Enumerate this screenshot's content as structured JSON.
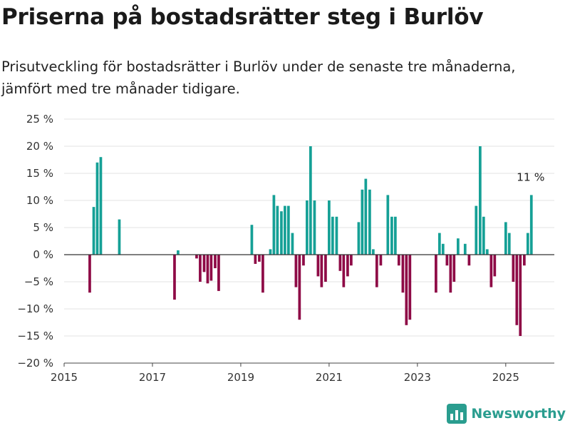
{
  "title": "Priserna på bostadsrätter steg i Burlöv",
  "subtitle": "Prisutveckling för bostadsrätter i Burlöv under de senaste tre månaderna, jämfört med tre månader tidigare.",
  "brand": "Newsworthy",
  "colors": {
    "positive": "#15a096",
    "negative": "#8e0a46",
    "grid": "#e3e3e3",
    "zero": "#333333"
  },
  "chart_data": {
    "type": "bar",
    "ylim": [
      -20,
      25
    ],
    "yticks": [
      -20,
      -15,
      -10,
      -5,
      0,
      5,
      10,
      15,
      20,
      25
    ],
    "ytick_labels": [
      "−20 %",
      "−15 %",
      "−10 %",
      "−5 %",
      "0 %",
      "5 %",
      "10 %",
      "15 %",
      "20 %",
      "25 %"
    ],
    "xlim": [
      2015,
      2026.1
    ],
    "xticks": [
      "2015",
      "2017",
      "2019",
      "2021",
      "2023",
      "2025"
    ],
    "annotation": {
      "text": "11 %",
      "x": 2025.58,
      "y": 11
    },
    "points": [
      {
        "x": 2015.58,
        "y": -7
      },
      {
        "x": 2015.67,
        "y": 8.8
      },
      {
        "x": 2015.75,
        "y": 17
      },
      {
        "x": 2015.83,
        "y": 18
      },
      {
        "x": 2016.25,
        "y": 6.5
      },
      {
        "x": 2017.5,
        "y": -8.3
      },
      {
        "x": 2017.58,
        "y": 0.8
      },
      {
        "x": 2018.0,
        "y": -0.7
      },
      {
        "x": 2018.08,
        "y": -5
      },
      {
        "x": 2018.17,
        "y": -3.2
      },
      {
        "x": 2018.25,
        "y": -5.3
      },
      {
        "x": 2018.33,
        "y": -4.8
      },
      {
        "x": 2018.42,
        "y": -2.5
      },
      {
        "x": 2018.5,
        "y": -6.7
      },
      {
        "x": 2019.25,
        "y": 5.5
      },
      {
        "x": 2019.33,
        "y": -1.7
      },
      {
        "x": 2019.42,
        "y": -1.3
      },
      {
        "x": 2019.5,
        "y": -7
      },
      {
        "x": 2019.67,
        "y": 1
      },
      {
        "x": 2019.75,
        "y": 11
      },
      {
        "x": 2019.83,
        "y": 9
      },
      {
        "x": 2019.92,
        "y": 8
      },
      {
        "x": 2020.0,
        "y": 9
      },
      {
        "x": 2020.08,
        "y": 9
      },
      {
        "x": 2020.17,
        "y": 4
      },
      {
        "x": 2020.25,
        "y": -6
      },
      {
        "x": 2020.33,
        "y": -12
      },
      {
        "x": 2020.42,
        "y": -2
      },
      {
        "x": 2020.5,
        "y": 10
      },
      {
        "x": 2020.58,
        "y": 20
      },
      {
        "x": 2020.67,
        "y": 10
      },
      {
        "x": 2020.75,
        "y": -4
      },
      {
        "x": 2020.83,
        "y": -6
      },
      {
        "x": 2020.92,
        "y": -5
      },
      {
        "x": 2021.0,
        "y": 10
      },
      {
        "x": 2021.08,
        "y": 7
      },
      {
        "x": 2021.17,
        "y": 7
      },
      {
        "x": 2021.25,
        "y": -3
      },
      {
        "x": 2021.33,
        "y": -6
      },
      {
        "x": 2021.42,
        "y": -4
      },
      {
        "x": 2021.5,
        "y": -2
      },
      {
        "x": 2021.67,
        "y": 6
      },
      {
        "x": 2021.75,
        "y": 12
      },
      {
        "x": 2021.83,
        "y": 14
      },
      {
        "x": 2021.92,
        "y": 12
      },
      {
        "x": 2022.0,
        "y": 1
      },
      {
        "x": 2022.08,
        "y": -6
      },
      {
        "x": 2022.17,
        "y": -2
      },
      {
        "x": 2022.33,
        "y": 11
      },
      {
        "x": 2022.42,
        "y": 7
      },
      {
        "x": 2022.5,
        "y": 7
      },
      {
        "x": 2022.58,
        "y": -2
      },
      {
        "x": 2022.67,
        "y": -7
      },
      {
        "x": 2022.75,
        "y": -13
      },
      {
        "x": 2022.83,
        "y": -12
      },
      {
        "x": 2023.42,
        "y": -7
      },
      {
        "x": 2023.5,
        "y": 4
      },
      {
        "x": 2023.58,
        "y": 2
      },
      {
        "x": 2023.67,
        "y": -2
      },
      {
        "x": 2023.75,
        "y": -7
      },
      {
        "x": 2023.83,
        "y": -5
      },
      {
        "x": 2023.92,
        "y": 3
      },
      {
        "x": 2024.08,
        "y": 2
      },
      {
        "x": 2024.17,
        "y": -2
      },
      {
        "x": 2024.33,
        "y": 9
      },
      {
        "x": 2024.42,
        "y": 20
      },
      {
        "x": 2024.5,
        "y": 7
      },
      {
        "x": 2024.58,
        "y": 1
      },
      {
        "x": 2024.67,
        "y": -6
      },
      {
        "x": 2024.75,
        "y": -4
      },
      {
        "x": 2025.0,
        "y": 6
      },
      {
        "x": 2025.08,
        "y": 4
      },
      {
        "x": 2025.17,
        "y": -5
      },
      {
        "x": 2025.25,
        "y": -13
      },
      {
        "x": 2025.33,
        "y": -15
      },
      {
        "x": 2025.42,
        "y": -2
      },
      {
        "x": 2025.5,
        "y": 4
      },
      {
        "x": 2025.58,
        "y": 11
      }
    ]
  }
}
